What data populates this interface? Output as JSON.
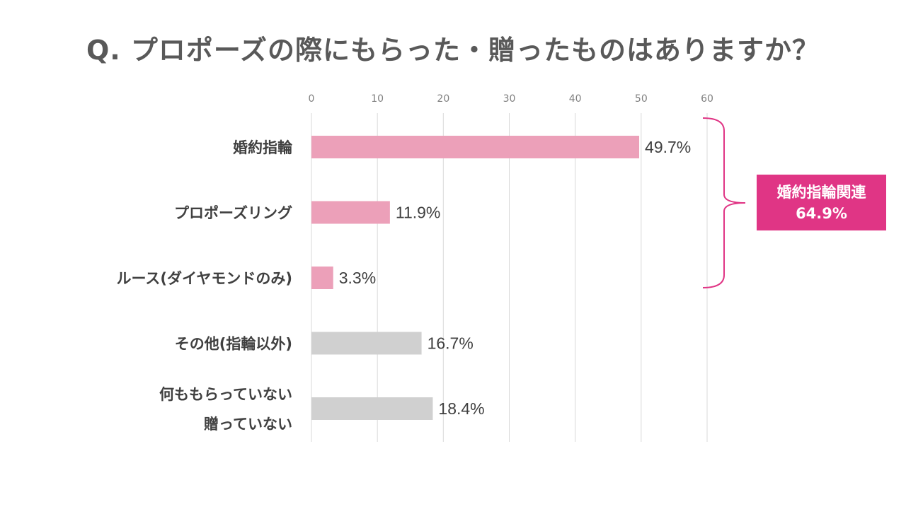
{
  "chart_data": {
    "type": "bar",
    "orientation": "horizontal",
    "title": "Q. プロポーズの際にもらった・贈ったものはありますか？",
    "categories": [
      [
        "婚約指輪"
      ],
      [
        "プロポーズリング"
      ],
      [
        "ルース(ダイヤモンドのみ)"
      ],
      [
        "その他(指輪以外)"
      ],
      [
        "何ももらっていない",
        "贈っていない"
      ]
    ],
    "values": [
      49.7,
      11.9,
      3.3,
      16.7,
      18.4
    ],
    "value_labels": [
      "49.7%",
      "11.9%",
      "3.3%",
      "16.7%",
      "18.4%"
    ],
    "bar_colors": [
      "#eca0b9",
      "#eca0b9",
      "#eca0b9",
      "#d0d0d0",
      "#d0d0d0"
    ],
    "xlim": [
      0,
      60
    ],
    "xticks": [
      0,
      10,
      20,
      30,
      40,
      50,
      60
    ],
    "grid": true,
    "xlabel": "",
    "ylabel": "",
    "annotation": {
      "label": "婚約指輪関連",
      "value": "64.9%",
      "groups_first_three": true,
      "color": "#e03585"
    }
  }
}
